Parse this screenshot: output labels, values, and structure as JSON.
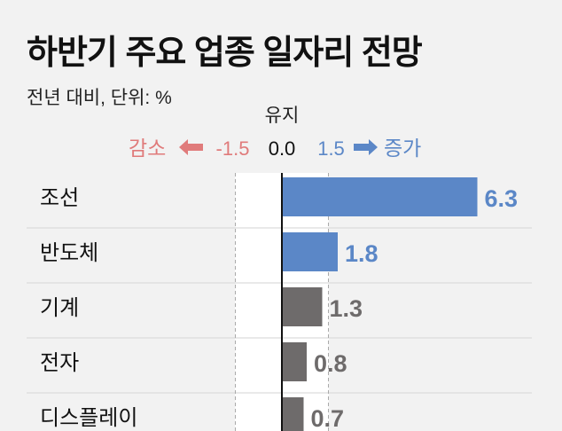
{
  "chart_data": {
    "type": "bar",
    "orientation": "horizontal",
    "title": "하반기 주요 업종 일자리 전망",
    "subtitle": "전년 대비, 단위: %",
    "center_label": "유지",
    "decrease_label": "감소",
    "increase_label": "증가",
    "ticks": [
      "-1.5",
      "0.0",
      "1.5"
    ],
    "tick_values": [
      -1.5,
      0,
      1.5
    ],
    "categories": [
      "조선",
      "반도체",
      "기계",
      "전자",
      "디스플레이"
    ],
    "values": [
      6.3,
      1.8,
      1.3,
      0.8,
      0.7
    ],
    "value_labels": [
      "6.3",
      "1.8",
      "1.3",
      "0.8",
      "0.7"
    ],
    "colors": {
      "increase_highlight": "#5b87c7",
      "neutral": "#6e6b6b",
      "decrease": "#e07b7b",
      "background": "#f2f2f2",
      "band": "#ffffff"
    },
    "highlight_threshold": 1.5
  }
}
